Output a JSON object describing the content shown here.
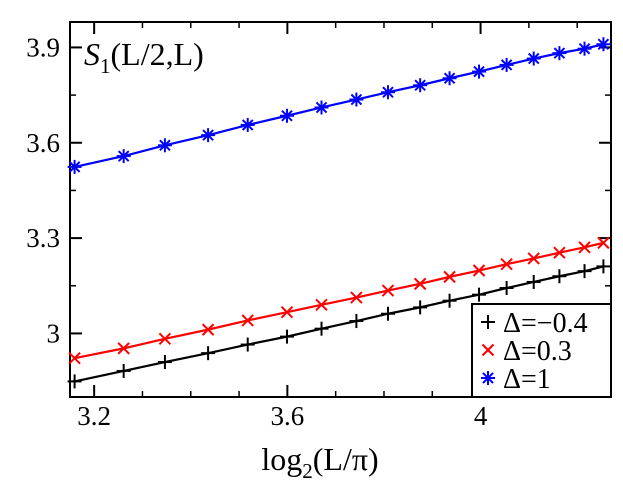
{
  "chart_data": {
    "type": "line",
    "title": "",
    "xlabel": {
      "main": "log",
      "sub": "2",
      "args": "(L/π)"
    },
    "ylabel": {
      "main": "S",
      "sub": "1",
      "args": "(L/2,L)"
    },
    "xlim": [
      3.15,
      4.27
    ],
    "ylim": [
      2.8,
      3.98
    ],
    "x_ticks": [
      3.2,
      3.6,
      4.0
    ],
    "x_tick_labels": [
      "3.2",
      "3.6",
      "4"
    ],
    "y_ticks": [
      3.0,
      3.3,
      3.6,
      3.9
    ],
    "y_tick_labels": [
      "3",
      "3.3",
      "3.6",
      "3.9"
    ],
    "x_minor_ticks": [
      3.3,
      3.4,
      3.5,
      3.7,
      3.8,
      3.9,
      4.1,
      4.2
    ],
    "y_minor_ticks": [
      2.85,
      3.15,
      3.45,
      3.75
    ],
    "legend_position": "bottom-right",
    "x": [
      3.1595,
      3.2611,
      3.3465,
      3.4359,
      3.5179,
      3.5992,
      3.6707,
      3.7429,
      3.8083,
      3.8749,
      3.9358,
      3.9968,
      4.0539,
      4.11,
      4.1632,
      4.2152,
      4.2543
    ],
    "series": [
      {
        "name": "Δ=−0.4",
        "marker": "plus",
        "color": "#000000",
        "values": [
          2.849,
          2.882,
          2.91,
          2.938,
          2.965,
          2.99,
          3.015,
          3.039,
          3.062,
          3.082,
          3.103,
          3.122,
          3.143,
          3.162,
          3.18,
          3.196,
          3.211
        ]
      },
      {
        "name": "Δ=0.3",
        "marker": "x",
        "color": "#ff0000",
        "values": [
          2.922,
          2.953,
          2.983,
          3.012,
          3.041,
          3.067,
          3.09,
          3.113,
          3.135,
          3.156,
          3.178,
          3.198,
          3.218,
          3.236,
          3.254,
          3.271,
          3.285
        ]
      },
      {
        "name": "Δ=1",
        "marker": "asterisk",
        "color": "#0000ff",
        "values": [
          3.524,
          3.558,
          3.592,
          3.624,
          3.656,
          3.685,
          3.711,
          3.736,
          3.759,
          3.781,
          3.803,
          3.824,
          3.845,
          3.865,
          3.882,
          3.896,
          3.91
        ]
      }
    ]
  }
}
